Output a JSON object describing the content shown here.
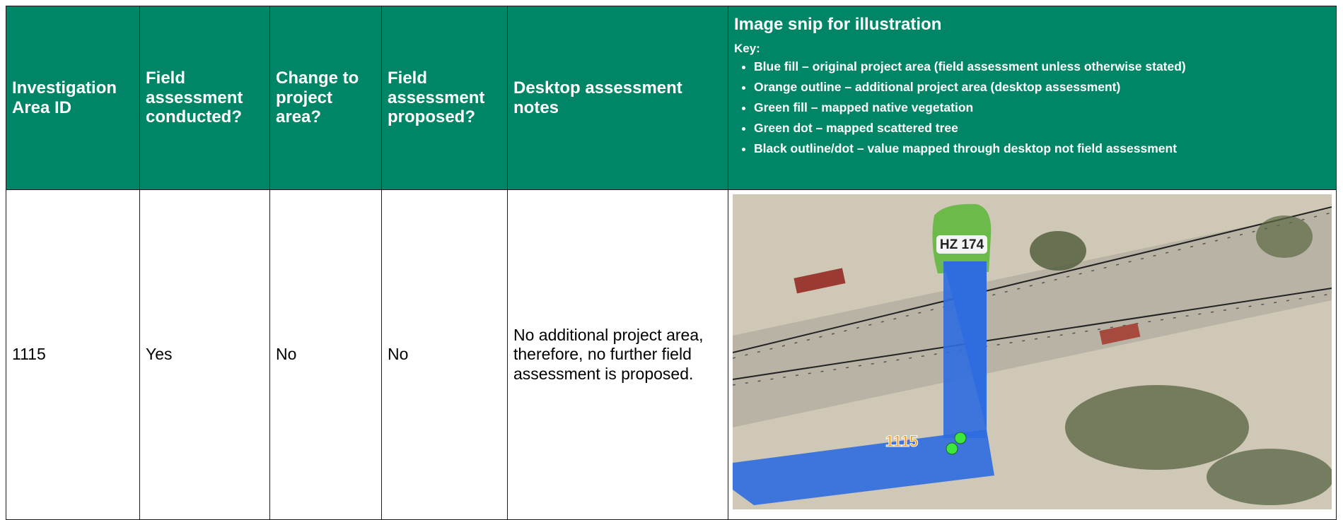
{
  "table": {
    "header": {
      "columns": [
        "Investigation Area ID",
        "Field assessment conducted?",
        "Change to project area?",
        "Field assessment proposed?",
        "Desktop assessment notes"
      ],
      "image_column": {
        "title": "Image snip for illustration",
        "key_label": "Key:",
        "key_items": [
          "Blue fill – original project area (field assessment unless otherwise stated)",
          "Orange outline – additional project area (desktop assessment)",
          "Green fill – mapped native vegetation",
          "Green dot – mapped scattered tree",
          "Black outline/dot – value mapped through desktop not field assessment"
        ]
      }
    },
    "rows": [
      [
        "1115",
        "Yes",
        "No",
        "No",
        "No additional project area, therefore, no further field assessment is proposed."
      ]
    ]
  },
  "map": {
    "labels": [
      "HZ 174",
      "1115"
    ]
  }
}
